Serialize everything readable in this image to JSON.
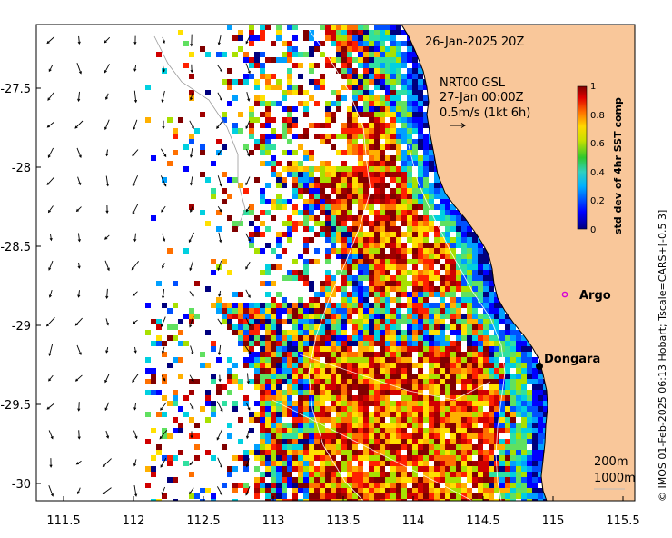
{
  "header": {
    "date_label": "26-Jan-2025 20Z",
    "current_model": "NRT00 GSL",
    "current_time": "27-Jan 00:00Z",
    "current_scale": "0.5m/s (1kt 6h)"
  },
  "colorbar": {
    "title": "std dev of 4hr SST comp",
    "ticks": [
      "1",
      "0.8",
      "0.6",
      "0.4",
      "0.2",
      "0"
    ],
    "range": [
      0,
      1
    ]
  },
  "axes": {
    "x_ticks": [
      "111.5",
      "112",
      "112.5",
      "113",
      "113.5",
      "114",
      "114.5",
      "115",
      "115.5"
    ],
    "y_ticks": [
      "-27.5",
      "-28",
      "-28.5",
      "-29",
      "-29.5",
      "-30"
    ],
    "x_range": [
      111.3,
      115.6
    ],
    "y_range": [
      -30.1,
      -27.1
    ]
  },
  "places": [
    {
      "name": "Argo",
      "marker": "magenta-ring"
    },
    {
      "name": "Dongara",
      "marker": "black-dot"
    }
  ],
  "contours": {
    "label_200": "200m",
    "label_1000": "1000m"
  },
  "credit": "© IMOS 01-Feb-2025 06:13 Hobart; Tscale=CARS+[-0.5 3]",
  "colors": {
    "land": "#f9c79a",
    "coast": "#000000",
    "argo": "#d600d6"
  }
}
